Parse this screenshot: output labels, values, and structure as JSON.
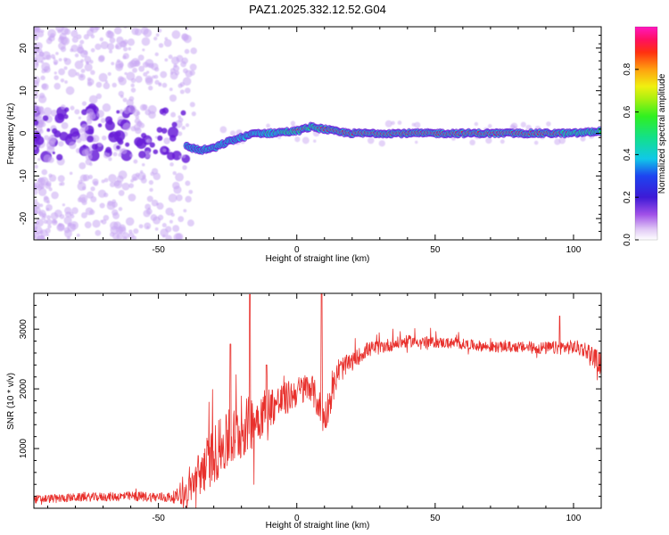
{
  "figure_title": "PAZ1.2025.332.12.52.G04",
  "colors": {
    "snr_line": "#e8302c",
    "strong_ridge": "#ff2a1a",
    "medium_ridge": "#22ee44",
    "weak_ridge": "#10c8d8",
    "scatter": "#6a1fd8",
    "scatter_faint": "#c9a8f2",
    "frame": "#000000"
  },
  "chart_data": [
    {
      "type": "heatmap",
      "name": "spectrogram",
      "xlabel": "Height of straight line (km)",
      "ylabel": "Frequency (Hz)",
      "xlim": [
        -95,
        110
      ],
      "ylim": [
        -25,
        25
      ],
      "xticks": [
        -50,
        0,
        50,
        100
      ],
      "yticks": [
        -20,
        -10,
        0,
        10,
        20
      ],
      "colorbar": {
        "label": "Normalized spectral amplitude",
        "range": [
          0,
          1
        ],
        "ticks": [
          "0.0",
          "0.2",
          "0.4",
          "0.6",
          "0.8"
        ],
        "tick_values": [
          0.0,
          0.2,
          0.4,
          0.6,
          0.8
        ]
      },
      "ridge": {
        "x": [
          -40,
          -35,
          -30,
          -25,
          -20,
          -15,
          -10,
          -5,
          0,
          5,
          10,
          15,
          20,
          30,
          50,
          70,
          90,
          100,
          110
        ],
        "frequency": [
          -3,
          -4,
          -3.5,
          -2,
          -1,
          0,
          0,
          0.3,
          0.5,
          1.5,
          1,
          0.3,
          0,
          0,
          0,
          0,
          0,
          0,
          0.5
        ],
        "amplitude": [
          0.25,
          0.3,
          0.3,
          0.3,
          0.35,
          0.4,
          0.45,
          0.55,
          0.85,
          0.7,
          0.85,
          0.9,
          0.92,
          0.95,
          0.95,
          0.95,
          0.9,
          0.7,
          0.55
        ]
      }
    },
    {
      "type": "line",
      "name": "snr",
      "xlabel": "Height of straight line (km)",
      "ylabel": "SNR (10 * v/v)",
      "xlim": [
        -95,
        110
      ],
      "ylim": [
        0,
        3600
      ],
      "xticks": [
        -50,
        0,
        50,
        100
      ],
      "yticks": [
        1000,
        2000,
        3000
      ],
      "envelope": {
        "x": [
          -95,
          -80,
          -60,
          -45,
          -40,
          -35,
          -30,
          -25,
          -20,
          -15,
          -10,
          -5,
          0,
          5,
          10,
          15,
          20,
          25,
          30,
          40,
          50,
          60,
          70,
          80,
          90,
          100,
          105,
          110
        ],
        "y": [
          150,
          180,
          200,
          180,
          250,
          600,
          900,
          1100,
          1300,
          1500,
          1700,
          1800,
          1950,
          2050,
          1500,
          2300,
          2450,
          2650,
          2700,
          2800,
          2780,
          2750,
          2700,
          2700,
          2680,
          2700,
          2650,
          2400
        ],
        "noise": [
          70,
          70,
          80,
          90,
          200,
          400,
          500,
          500,
          500,
          450,
          350,
          300,
          250,
          250,
          300,
          220,
          150,
          130,
          120,
          100,
          90,
          90,
          90,
          90,
          110,
          120,
          140,
          200
        ]
      },
      "spikes": [
        {
          "x": -24,
          "y": 2750
        },
        {
          "x": -17,
          "y": 3580
        },
        {
          "x": -11,
          "y": 2400
        },
        {
          "x": 9,
          "y": 3600
        },
        {
          "x": 95,
          "y": 3220
        }
      ]
    }
  ]
}
